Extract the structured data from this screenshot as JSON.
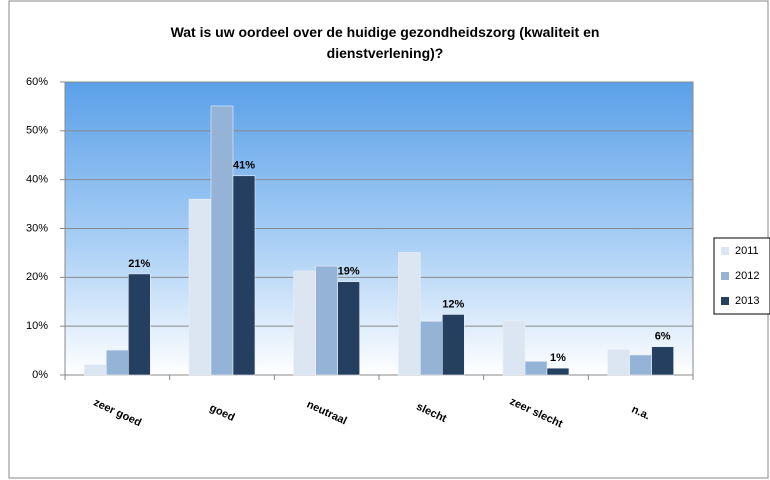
{
  "chart_data": {
    "type": "bar",
    "title": "Wat is uw oordeel over de huidige gezondheidszorg (kwaliteit en dienstverlening)?",
    "categories": [
      "zeer goed",
      "goed",
      "neutraal",
      "slecht",
      "zeer slecht",
      "n.a."
    ],
    "series": [
      {
        "name": "2011",
        "color": "#dce6f2",
        "values": [
          2.1,
          36,
          21.3,
          25.1,
          11.1,
          5.2
        ]
      },
      {
        "name": "2012",
        "color": "#95b3d7",
        "values": [
          5.1,
          55.1,
          22.3,
          11,
          2.8,
          4.1
        ]
      },
      {
        "name": "2013",
        "color": "#243f60",
        "values": [
          20.7,
          40.8,
          19.1,
          12.4,
          1.4,
          5.8
        ],
        "value_labels": [
          "21%",
          "41%",
          "19%",
          "12%",
          "1%",
          "6%"
        ]
      }
    ],
    "ylim": [
      0,
      60
    ],
    "yticks": [
      {
        "value": 0,
        "label": "0%"
      },
      {
        "value": 10,
        "label": "10%"
      },
      {
        "value": 20,
        "label": "20%"
      },
      {
        "value": 30,
        "label": "30%"
      },
      {
        "value": 40,
        "label": "40%"
      },
      {
        "value": 50,
        "label": "50%"
      },
      {
        "value": 60,
        "label": "60%"
      }
    ],
    "grid": true,
    "legend": "right"
  }
}
